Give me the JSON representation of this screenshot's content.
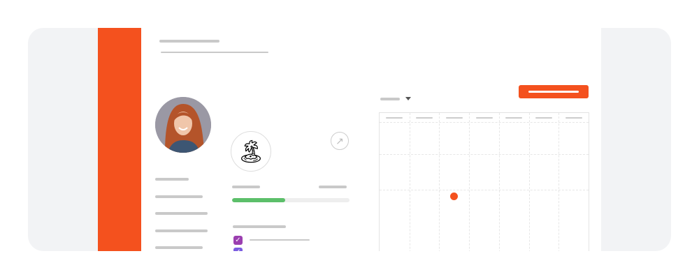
{
  "colors": {
    "accent": "#f4511e",
    "progress": "#5cbf6a",
    "checkbox_1": "#9b3fb0",
    "checkbox_2": "#7b5ce0",
    "frame_background": "#f2f3f5",
    "placeholder": "#c9c9c9"
  },
  "icons": {
    "badge": "🏝",
    "external": "↗"
  },
  "profile": {
    "progress_percent": 45,
    "checkboxes": [
      {
        "checked": true
      },
      {
        "checked": true
      }
    ]
  },
  "calendar": {
    "columns": 7,
    "event_marker": {
      "column": 3,
      "row": 3
    }
  }
}
